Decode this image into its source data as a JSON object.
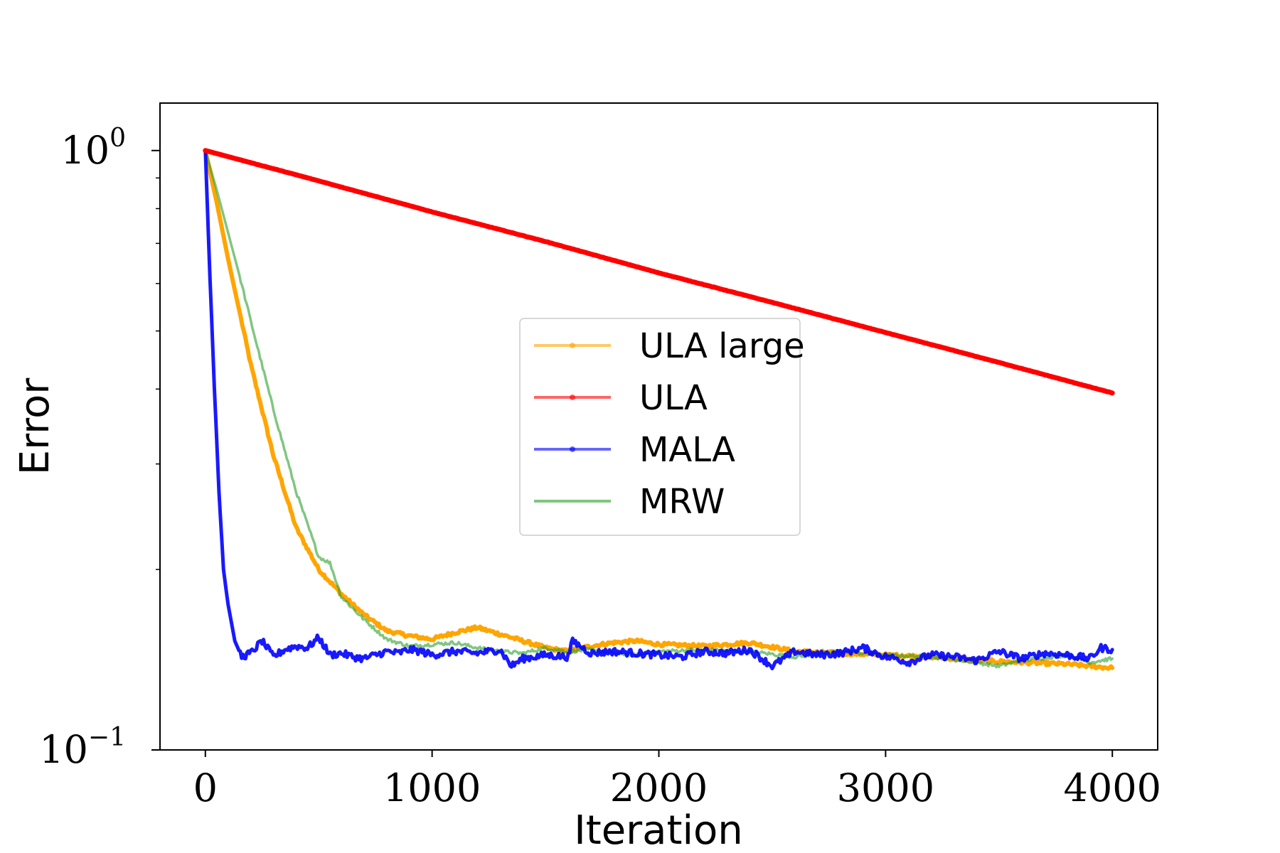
{
  "chart_data": {
    "type": "line",
    "xlabel": "Iteration",
    "ylabel": "Error",
    "xlim": [
      -200,
      4200
    ],
    "ylim": [
      0.1,
      1.2
    ],
    "yscale": "log",
    "xticks": [
      0,
      1000,
      2000,
      3000,
      4000
    ],
    "xtick_labels": [
      "0",
      "1000",
      "2000",
      "3000",
      "4000"
    ],
    "yticks": [
      {
        "value": 1.0,
        "base": "10",
        "exp": "0"
      },
      {
        "value": 0.1,
        "base": "10",
        "exp": "−1"
      }
    ],
    "grid": false,
    "legend_position": "center",
    "series": [
      {
        "name": "ULA large",
        "color": "#FFA500",
        "marker": true,
        "x": [
          0,
          50,
          100,
          150,
          200,
          300,
          400,
          500,
          600,
          700,
          800,
          900,
          1000,
          1100,
          1200,
          1300,
          1400,
          1500,
          1600,
          1700,
          1800,
          1900,
          2000,
          2200,
          2400,
          2600,
          2800,
          3000,
          3200,
          3400,
          3600,
          3800,
          4000
        ],
        "values": [
          1.0,
          0.82,
          0.66,
          0.54,
          0.44,
          0.31,
          0.235,
          0.2,
          0.182,
          0.168,
          0.158,
          0.155,
          0.153,
          0.157,
          0.16,
          0.156,
          0.152,
          0.148,
          0.146,
          0.149,
          0.151,
          0.152,
          0.15,
          0.149,
          0.151,
          0.146,
          0.145,
          0.144,
          0.143,
          0.141,
          0.14,
          0.139,
          0.137
        ]
      },
      {
        "name": "ULA",
        "color": "#FF0000",
        "marker": true,
        "x": [
          0,
          500,
          1000,
          1500,
          2000,
          2500,
          3000,
          3500,
          4000
        ],
        "values": [
          1.0,
          0.89,
          0.79,
          0.705,
          0.625,
          0.558,
          0.497,
          0.443,
          0.394
        ]
      },
      {
        "name": "MALA",
        "color": "#0000FF",
        "marker": true,
        "x": [
          0,
          20,
          40,
          60,
          80,
          100,
          130,
          160,
          200,
          250,
          300,
          350,
          400,
          450,
          500,
          550,
          600,
          650,
          700,
          750,
          800,
          850,
          900,
          950,
          1000,
          1100,
          1200,
          1300,
          1350,
          1400,
          1500,
          1600,
          1620,
          1700,
          1800,
          1900,
          2000,
          2100,
          2200,
          2300,
          2400,
          2500,
          2600,
          2700,
          2800,
          2900,
          3000,
          3050,
          3100,
          3200,
          3300,
          3400,
          3500,
          3600,
          3700,
          3800,
          3900,
          3950,
          4000
        ],
        "values": [
          1.0,
          0.62,
          0.4,
          0.27,
          0.2,
          0.175,
          0.152,
          0.143,
          0.145,
          0.152,
          0.143,
          0.147,
          0.149,
          0.148,
          0.154,
          0.144,
          0.145,
          0.143,
          0.142,
          0.144,
          0.146,
          0.145,
          0.147,
          0.146,
          0.144,
          0.146,
          0.145,
          0.147,
          0.138,
          0.142,
          0.144,
          0.143,
          0.152,
          0.145,
          0.146,
          0.145,
          0.144,
          0.143,
          0.146,
          0.145,
          0.147,
          0.138,
          0.146,
          0.144,
          0.145,
          0.148,
          0.143,
          0.142,
          0.14,
          0.144,
          0.143,
          0.141,
          0.146,
          0.142,
          0.145,
          0.144,
          0.142,
          0.148,
          0.147
        ]
      },
      {
        "name": "MRW",
        "color": "#2CA02C",
        "marker": false,
        "x": [
          0,
          50,
          100,
          150,
          200,
          300,
          400,
          500,
          550,
          600,
          700,
          800,
          900,
          1000,
          1100,
          1200,
          1300,
          1400,
          1500,
          1600,
          1700,
          1800,
          1900,
          2000,
          2200,
          2400,
          2600,
          2800,
          3000,
          3200,
          3400,
          3500,
          3600,
          3800,
          3900,
          4000
        ],
        "values": [
          1.0,
          0.86,
          0.73,
          0.62,
          0.52,
          0.37,
          0.27,
          0.21,
          0.205,
          0.18,
          0.165,
          0.153,
          0.149,
          0.15,
          0.151,
          0.148,
          0.146,
          0.145,
          0.148,
          0.146,
          0.147,
          0.145,
          0.144,
          0.146,
          0.147,
          0.146,
          0.143,
          0.146,
          0.144,
          0.143,
          0.14,
          0.138,
          0.141,
          0.144,
          0.14,
          0.142
        ]
      }
    ]
  }
}
